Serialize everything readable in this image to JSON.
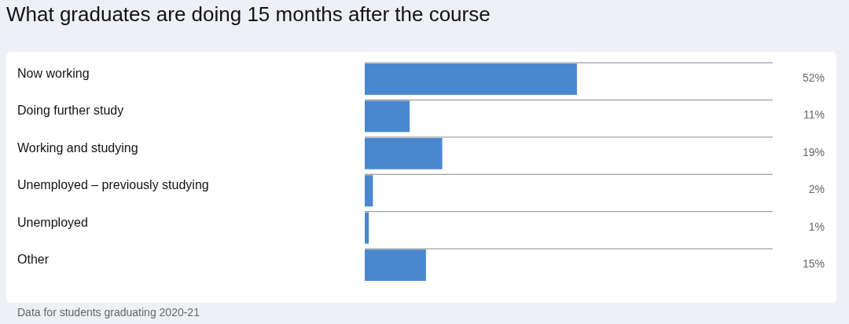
{
  "chart_data": {
    "type": "bar",
    "orientation": "horizontal",
    "title": "What graduates are doing 15 months after the course",
    "categories": [
      "Now working",
      "Doing further study",
      "Working and studying",
      "Unemployed – previously studying",
      "Unemployed",
      "Other"
    ],
    "values": [
      52,
      11,
      19,
      2,
      1,
      15
    ],
    "value_labels": [
      "52%",
      "11%",
      "19%",
      "2%",
      "1%",
      "15%"
    ],
    "color": "#4a87cf",
    "xlim": [
      0,
      100
    ],
    "tick_labels": "y",
    "annotations": [
      "Data for students graduating 2020-21"
    ]
  }
}
